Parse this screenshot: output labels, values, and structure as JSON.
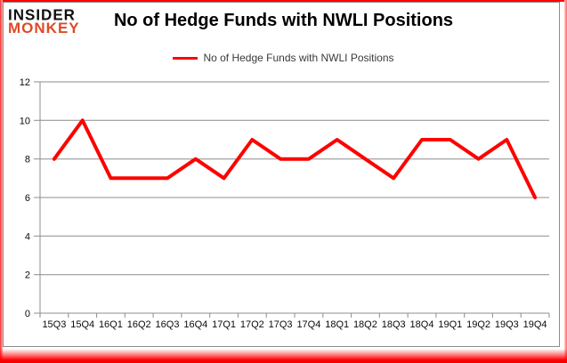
{
  "logo": {
    "line1": "INSIDER",
    "line2": "MONKEY",
    "color": "#DD4B27"
  },
  "title": "No of Hedge Funds with NWLI Positions",
  "legend": {
    "label": "No of Hedge Funds with NWLI Positions",
    "line_color": "#FF0000"
  },
  "chart_data": {
    "type": "line",
    "title": "No of Hedge Funds with NWLI Positions",
    "series_name": "No of Hedge Funds with NWLI Positions",
    "categories": [
      "15Q3",
      "15Q4",
      "16Q1",
      "16Q2",
      "16Q3",
      "16Q4",
      "17Q1",
      "17Q2",
      "17Q3",
      "17Q4",
      "18Q1",
      "18Q2",
      "18Q3",
      "18Q4",
      "19Q1",
      "19Q2",
      "19Q3",
      "19Q4"
    ],
    "values": [
      8,
      10,
      7,
      7,
      7,
      8,
      7,
      9,
      8,
      8,
      9,
      8,
      7,
      9,
      9,
      8,
      9,
      6
    ],
    "xlabel": "",
    "ylabel": "",
    "ylim": [
      0,
      12
    ],
    "ytick_step": 2,
    "yticks": [
      0,
      2,
      4,
      6,
      8,
      10,
      12
    ],
    "grid": true,
    "legend_position": "top-center",
    "line_color": "#FF0000",
    "grid_color": "#8c8c8c",
    "axis_text_color": "#0a0a0a"
  },
  "colors": {
    "border_red": "#FF0000",
    "frame_gray": "#8c8c8c",
    "background": "#FFFFFF"
  }
}
